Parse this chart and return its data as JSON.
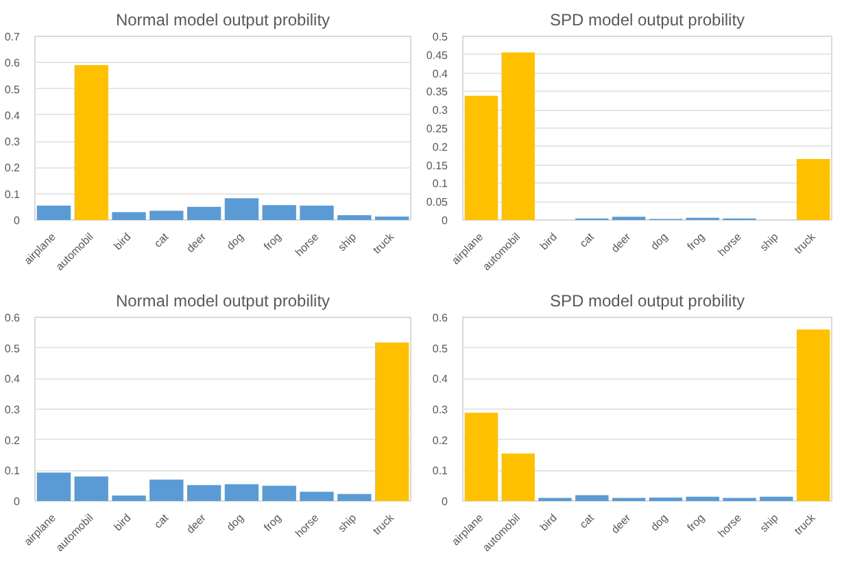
{
  "chart_data": [
    {
      "type": "bar",
      "title": "Normal model output probility",
      "categories": [
        "airplane",
        "automobil",
        "bird",
        "cat",
        "deer",
        "dog",
        "frog",
        "horse",
        "ship",
        "truck"
      ],
      "values": [
        0.055,
        0.59,
        0.03,
        0.035,
        0.05,
        0.083,
        0.057,
        0.055,
        0.018,
        0.013
      ],
      "colors": [
        "#5b9bd5",
        "#ffc000",
        "#5b9bd5",
        "#5b9bd5",
        "#5b9bd5",
        "#5b9bd5",
        "#5b9bd5",
        "#5b9bd5",
        "#5b9bd5",
        "#5b9bd5"
      ],
      "ylim": [
        0,
        0.7
      ],
      "yticks": [
        0,
        0.1,
        0.2,
        0.3,
        0.4,
        0.5,
        0.6,
        0.7
      ],
      "grid": "y"
    },
    {
      "type": "bar",
      "title": "SPD model output probility",
      "categories": [
        "airplane",
        "automobil",
        "bird",
        "cat",
        "deer",
        "dog",
        "frog",
        "horse",
        "ship",
        "truck"
      ],
      "values": [
        0.338,
        0.456,
        null,
        0.004,
        0.009,
        0.003,
        0.006,
        0.004,
        null,
        0.166
      ],
      "colors": [
        "#ffc000",
        "#ffc000",
        "#5b9bd5",
        "#5b9bd5",
        "#5b9bd5",
        "#5b9bd5",
        "#5b9bd5",
        "#5b9bd5",
        "#5b9bd5",
        "#ffc000"
      ],
      "ylim": [
        0,
        0.5
      ],
      "yticks": [
        0,
        0.05,
        0.1,
        0.15,
        0.2,
        0.25,
        0.3,
        0.35,
        0.4,
        0.45,
        0.5
      ],
      "grid": "y"
    },
    {
      "type": "bar",
      "title": "Normal model output probility",
      "categories": [
        "airplane",
        "automobil",
        "bird",
        "cat",
        "deer",
        "dog",
        "frog",
        "horse",
        "ship",
        "truck"
      ],
      "values": [
        0.093,
        0.08,
        0.018,
        0.07,
        0.052,
        0.055,
        0.05,
        0.03,
        0.023,
        0.518
      ],
      "colors": [
        "#5b9bd5",
        "#5b9bd5",
        "#5b9bd5",
        "#5b9bd5",
        "#5b9bd5",
        "#5b9bd5",
        "#5b9bd5",
        "#5b9bd5",
        "#5b9bd5",
        "#ffc000"
      ],
      "ylim": [
        0,
        0.6
      ],
      "yticks": [
        0,
        0.1,
        0.2,
        0.3,
        0.4,
        0.5,
        0.6
      ],
      "grid": "y"
    },
    {
      "type": "bar",
      "title": "SPD model output probility",
      "categories": [
        "airplane",
        "automobil",
        "bird",
        "cat",
        "deer",
        "dog",
        "frog",
        "horse",
        "ship",
        "truck"
      ],
      "values": [
        0.288,
        0.155,
        0.01,
        0.019,
        0.01,
        0.011,
        0.014,
        0.01,
        0.014,
        0.56
      ],
      "colors": [
        "#ffc000",
        "#ffc000",
        "#5b9bd5",
        "#5b9bd5",
        "#5b9bd5",
        "#5b9bd5",
        "#5b9bd5",
        "#5b9bd5",
        "#5b9bd5",
        "#ffc000"
      ],
      "ylim": [
        0,
        0.6
      ],
      "yticks": [
        0,
        0.1,
        0.2,
        0.3,
        0.4,
        0.5,
        0.6
      ],
      "grid": "y"
    }
  ]
}
